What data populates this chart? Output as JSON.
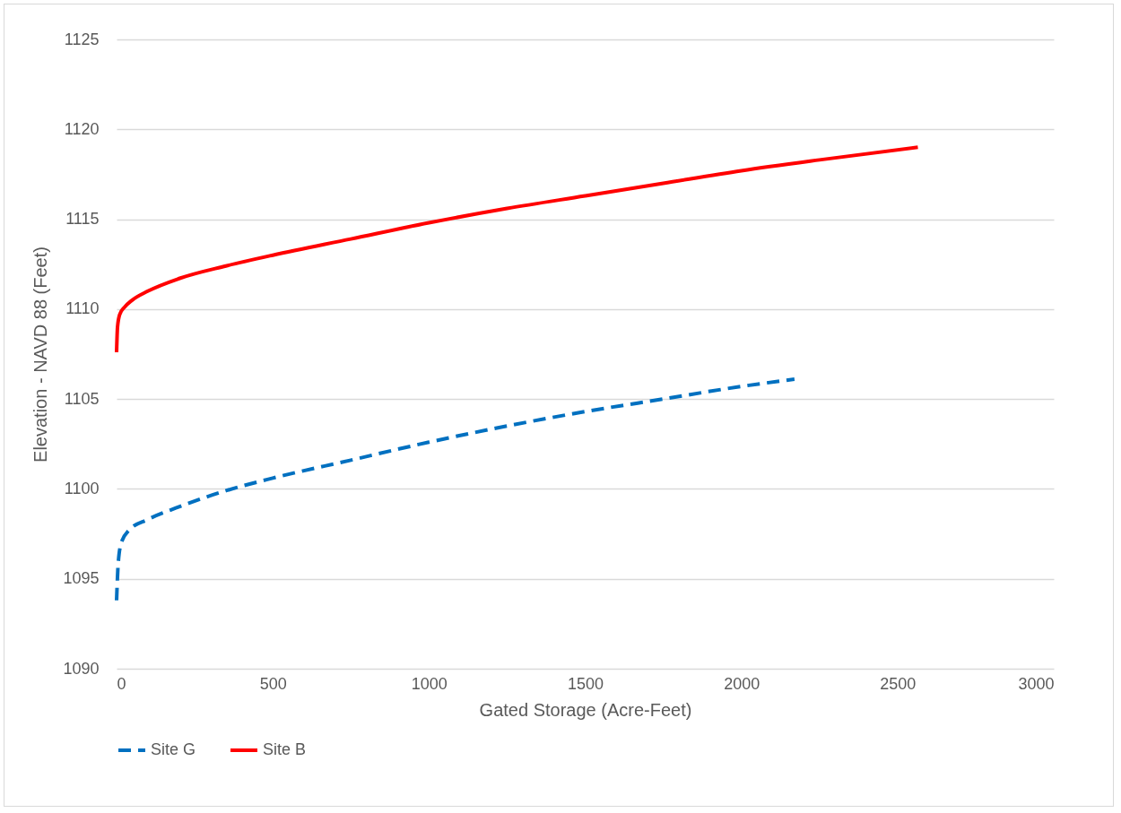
{
  "chart_data": {
    "type": "line",
    "xlabel": "Gated Storage (Acre-Feet)",
    "ylabel": "Elevation - NAVD 88 (Feet)",
    "xlim": [
      0,
      3000
    ],
    "xticks": [
      0,
      500,
      1000,
      1500,
      2000,
      2500,
      3000
    ],
    "ylim": [
      1090,
      1125
    ],
    "yticks": [
      1090,
      1095,
      1100,
      1105,
      1110,
      1115,
      1120,
      1125
    ],
    "grid": "y",
    "legend": "bottom",
    "marker": "none",
    "series": [
      {
        "name": "Site G",
        "color": "#0070c0",
        "line_style": "dashed",
        "x": [
          0,
          5,
          15,
          40,
          100,
          200,
          350,
          500,
          750,
          1000,
          1250,
          1500,
          1750,
          2000,
          2170
        ],
        "values": [
          1093.8,
          1095.8,
          1097.0,
          1097.7,
          1098.3,
          1099.0,
          1099.9,
          1100.6,
          1101.6,
          1102.6,
          1103.5,
          1104.3,
          1105.0,
          1105.7,
          1106.1
        ]
      },
      {
        "name": "Site B",
        "color": "#ff0000",
        "line_style": "solid",
        "x": [
          0,
          3,
          10,
          25,
          50,
          100,
          200,
          350,
          500,
          750,
          1000,
          1250,
          1500,
          1750,
          2000,
          2250,
          2565
        ],
        "values": [
          1107.6,
          1109.0,
          1109.7,
          1110.1,
          1110.5,
          1111.0,
          1111.7,
          1112.4,
          1113.0,
          1113.9,
          1114.8,
          1115.6,
          1116.3,
          1117.0,
          1117.7,
          1118.3,
          1119.0
        ]
      }
    ]
  }
}
